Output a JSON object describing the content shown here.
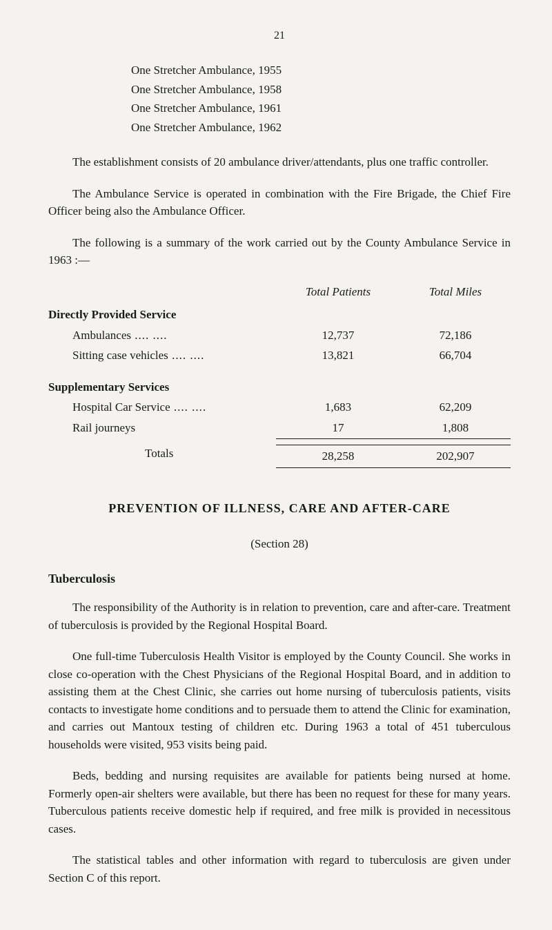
{
  "page_number": "21",
  "ambulance_list": [
    "One Stretcher Ambulance, 1955",
    "One Stretcher Ambulance, 1958",
    "One Stretcher Ambulance, 1961",
    "One Stretcher Ambulance, 1962"
  ],
  "para_establishment": "The establishment consists of 20 ambulance driver/attendants, plus one traffic controller.",
  "para_ambulance_service": "The Ambulance Service is operated in combination with the Fire Brigade, the Chief Fire Officer being also the Ambulance Officer.",
  "para_following": "The following is a summary of the work carried out by the County Ambulance Service in 1963 :—",
  "table": {
    "header_patients": "Total Patients",
    "header_miles": "Total Miles",
    "directly_provided_heading": "Directly Provided Service",
    "rows_direct": [
      {
        "label": "Ambulances",
        "patients": "12,737",
        "miles": "72,186"
      },
      {
        "label": "Sitting case vehicles",
        "patients": "13,821",
        "miles": "66,704"
      }
    ],
    "supplementary_heading": "Supplementary Services",
    "rows_supp": [
      {
        "label": "Hospital Car Service",
        "patients": "1,683",
        "miles": "62,209"
      },
      {
        "label": "Rail journeys",
        "patients": "17",
        "miles": "1,808"
      }
    ],
    "totals_label": "Totals",
    "totals_patients": "28,258",
    "totals_miles": "202,907"
  },
  "main_heading": "PREVENTION OF ILLNESS, CARE AND AFTER-CARE",
  "section_ref": "(Section 28)",
  "tuberculosis_heading": "Tuberculosis",
  "para_responsibility": "The responsibility of the Authority is in relation to prevention, care and after-care. Treatment of tuberculosis is provided by the Regional Hospital Board.",
  "para_fulltime": "One full-time Tuberculosis Health Visitor is employed by the County Council. She works in close co-operation with the Chest Physicians of the Regional Hospital Board, and in addition to assisting them at the Chest Clinic, she carries out home nursing of tuberculosis patients, visits contacts to investigate home conditions and to persuade them to attend the Clinic for examination, and carries out Mantoux testing of children etc. During 1963 a total of 451 tuberculous households were visited, 953 visits being paid.",
  "para_beds": "Beds, bedding and nursing requisites are available for patients being nursed at home. Formerly open-air shelters were available, but there has been no request for these for many years. Tuberculous patients receive domestic help if required, and free milk is provided in necessitous cases.",
  "para_statistical": "The statistical tables and other information with regard to tuberculosis are given under Section C of this report."
}
